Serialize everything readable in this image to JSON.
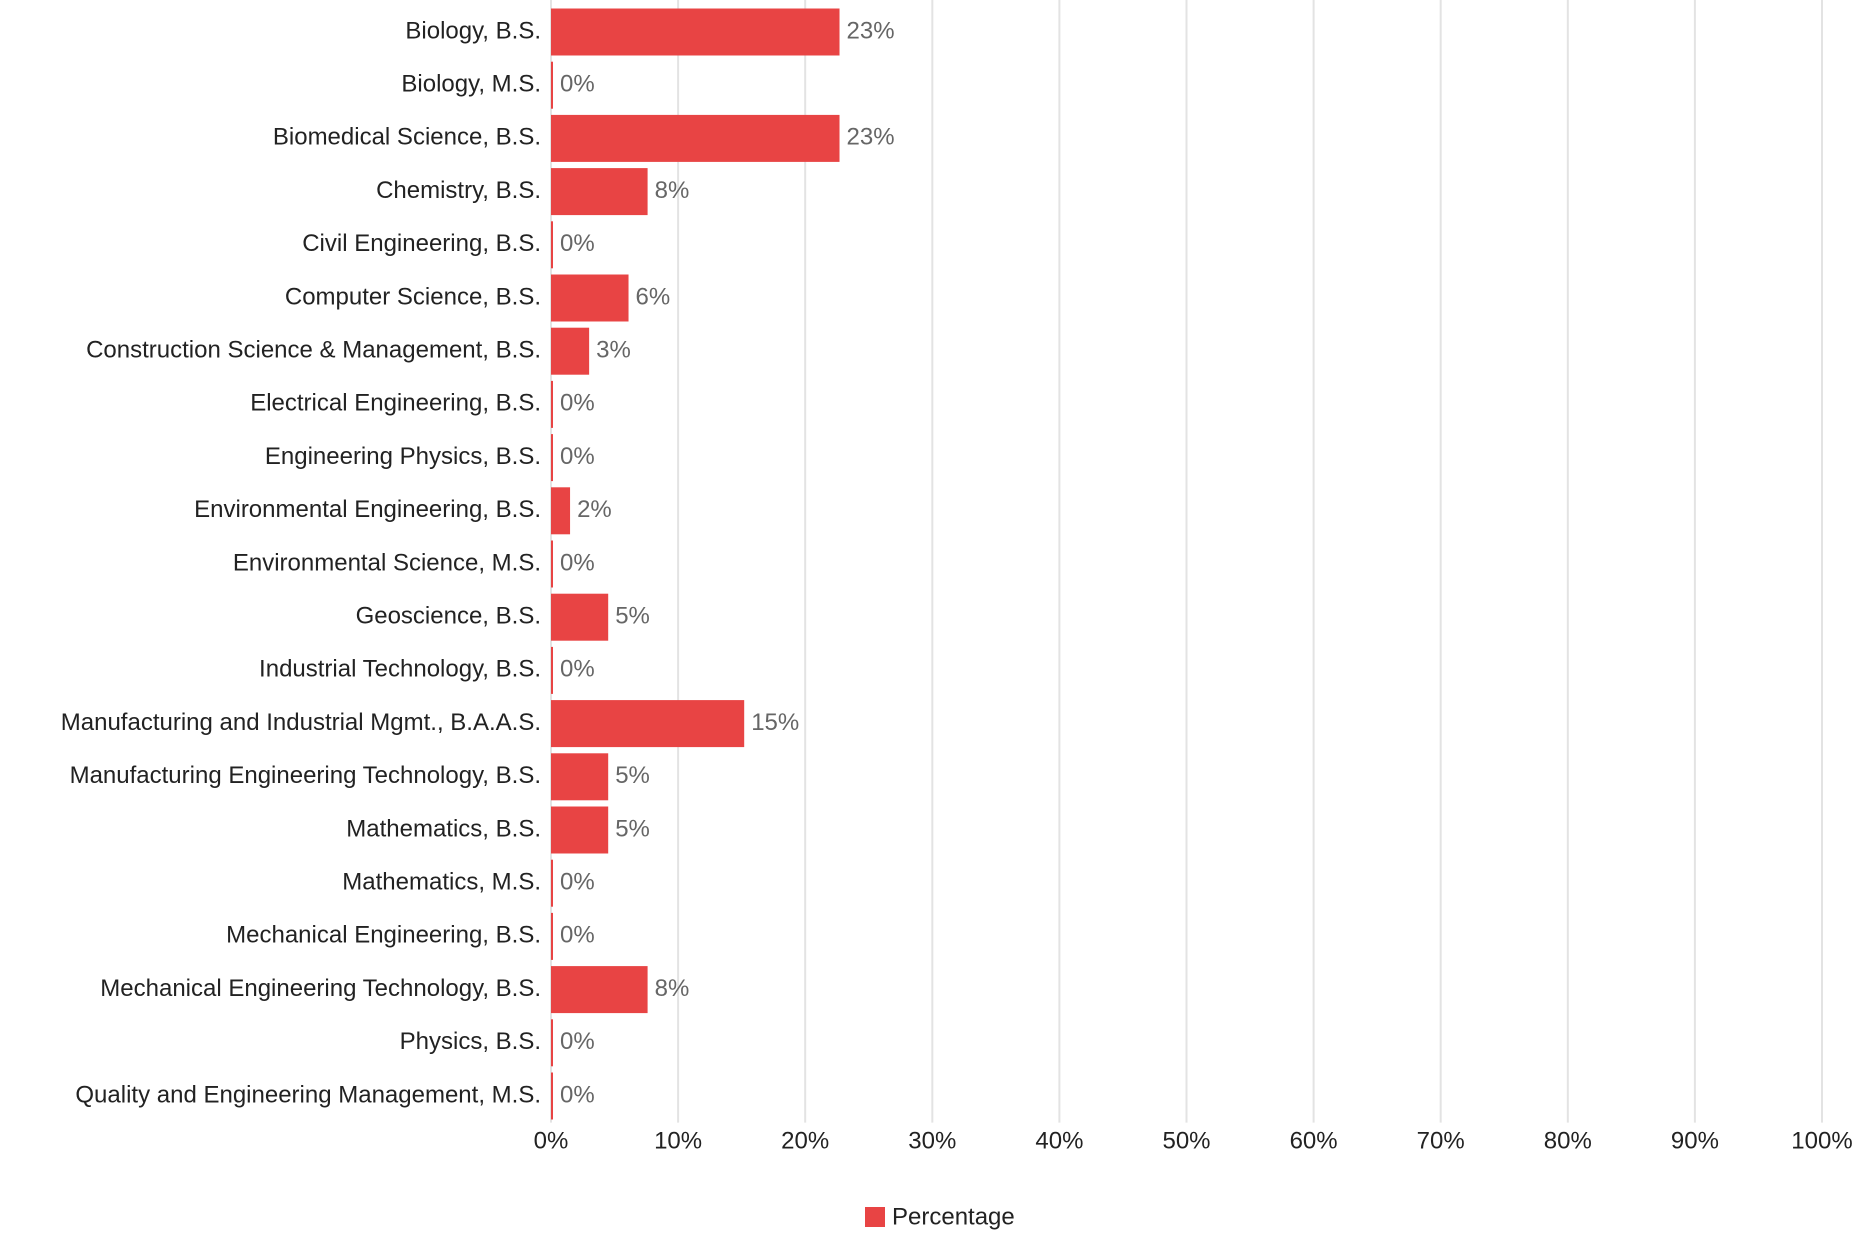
{
  "chart_data": {
    "type": "bar",
    "orientation": "horizontal",
    "categories": [
      "Biology, B.S.",
      "Biology, M.S.",
      "Biomedical Science, B.S.",
      "Chemistry, B.S.",
      "Civil Engineering, B.S.",
      "Computer Science, B.S.",
      "Construction Science & Management, B.S.",
      "Electrical Engineering, B.S.",
      "Engineering Physics, B.S.",
      "Environmental Engineering, B.S.",
      "Environmental Science, M.S.",
      "Geoscience, B.S.",
      "Industrial Technology, B.S.",
      "Manufacturing and Industrial Mgmt., B.A.A.S.",
      "Manufacturing Engineering Technology, B.S.",
      "Mathematics, B.S.",
      "Mathematics, M.S.",
      "Mechanical Engineering, B.S.",
      "Mechanical Engineering Technology, B.S.",
      "Physics, B.S.",
      "Quality and Engineering Management, M.S."
    ],
    "series": [
      {
        "name": "Percentage",
        "color": "#e84444",
        "values": [
          22.7,
          0,
          22.7,
          7.6,
          0,
          6.1,
          3.0,
          0,
          0,
          1.5,
          0,
          4.5,
          0,
          15.2,
          4.5,
          4.5,
          0,
          0,
          7.6,
          0,
          0
        ],
        "value_labels": [
          "23%",
          "0%",
          "23%",
          "8%",
          "0%",
          "6%",
          "3%",
          "0%",
          "0%",
          "2%",
          "0%",
          "5%",
          "0%",
          "15%",
          "5%",
          "5%",
          "0%",
          "0%",
          "8%",
          "0%",
          "0%"
        ]
      }
    ],
    "xlim": [
      0,
      100
    ],
    "xticks": [
      {
        "value": 0,
        "label": "0%"
      },
      {
        "value": 10,
        "label": "10%"
      },
      {
        "value": 20,
        "label": "20%"
      },
      {
        "value": 30,
        "label": "30%"
      },
      {
        "value": 40,
        "label": "40%"
      },
      {
        "value": 50,
        "label": "50%"
      },
      {
        "value": 60,
        "label": "60%"
      },
      {
        "value": 70,
        "label": "70%"
      },
      {
        "value": 80,
        "label": "80%"
      },
      {
        "value": 90,
        "label": "90%"
      },
      {
        "value": 100,
        "label": "100%"
      }
    ],
    "grid": true,
    "legend": "bottom"
  }
}
